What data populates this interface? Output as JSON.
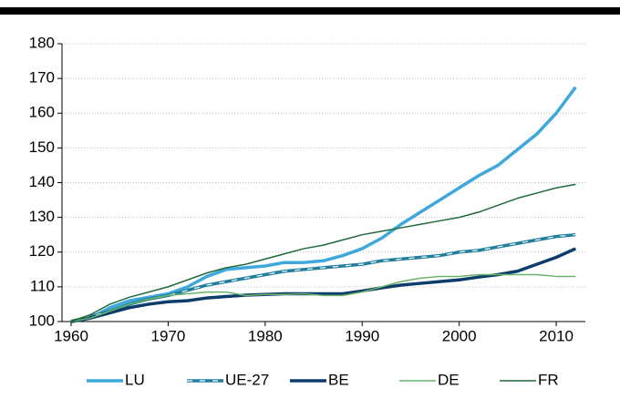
{
  "chart_data": {
    "type": "line",
    "x": [
      1960,
      1962,
      1964,
      1966,
      1968,
      1970,
      1972,
      1974,
      1976,
      1978,
      1980,
      1982,
      1984,
      1986,
      1988,
      1990,
      1992,
      1994,
      1996,
      1998,
      2000,
      2002,
      2004,
      2006,
      2008,
      2010,
      2012
    ],
    "xlim": [
      1960,
      2013
    ],
    "xticks": [
      1960,
      1970,
      1980,
      1990,
      2000,
      2010
    ],
    "ylim": [
      100,
      180
    ],
    "yticks": [
      100,
      110,
      120,
      130,
      140,
      150,
      160,
      170,
      180
    ],
    "grid": true,
    "legend": "bottom",
    "series": [
      {
        "name": "LU",
        "color": "#3ea8dc",
        "values": [
          100,
          101,
          104,
          106,
          107,
          108,
          110,
          113,
          115,
          115.5,
          116,
          117,
          117,
          117.5,
          119,
          121,
          124,
          128,
          131.5,
          135,
          138.5,
          142,
          145,
          149.5,
          154,
          160,
          167.5
        ]
      },
      {
        "name": "UE-27",
        "color": "#1f7f9c",
        "values": [
          100,
          101.5,
          103,
          105,
          106.5,
          107.5,
          109,
          110.5,
          111.5,
          112.5,
          113.5,
          114.5,
          115,
          115.5,
          116,
          116.5,
          117.5,
          118,
          118.5,
          119,
          120,
          120.5,
          121.5,
          122.5,
          123.5,
          124.5,
          125
        ]
      },
      {
        "name": "BE",
        "color": "#0d3e6b",
        "values": [
          100,
          101,
          102.5,
          104,
          105,
          105.7,
          106,
          106.8,
          107.2,
          107.6,
          107.8,
          108,
          108,
          108,
          108,
          108.8,
          109.7,
          110.5,
          111,
          111.5,
          112,
          112.8,
          113.5,
          114.5,
          116.5,
          118.5,
          121
        ]
      },
      {
        "name": "DE",
        "color": "#6ab36a",
        "values": [
          100,
          101,
          103,
          105,
          106.5,
          107.5,
          108,
          108.5,
          108.5,
          107.5,
          107.8,
          107.8,
          108,
          107.5,
          107.5,
          108.5,
          110,
          111.5,
          112.5,
          113,
          113,
          113.5,
          113.5,
          113.5,
          113.5,
          113,
          113
        ]
      },
      {
        "name": "FR",
        "color": "#1e6b3c",
        "values": [
          100,
          102,
          105,
          107,
          108.5,
          110,
          112,
          114,
          115.5,
          116.5,
          118,
          119.5,
          121,
          122,
          123.5,
          125,
          126,
          127,
          128,
          129,
          130,
          131.5,
          133.5,
          135.5,
          137,
          138.5,
          139.5
        ]
      }
    ]
  }
}
